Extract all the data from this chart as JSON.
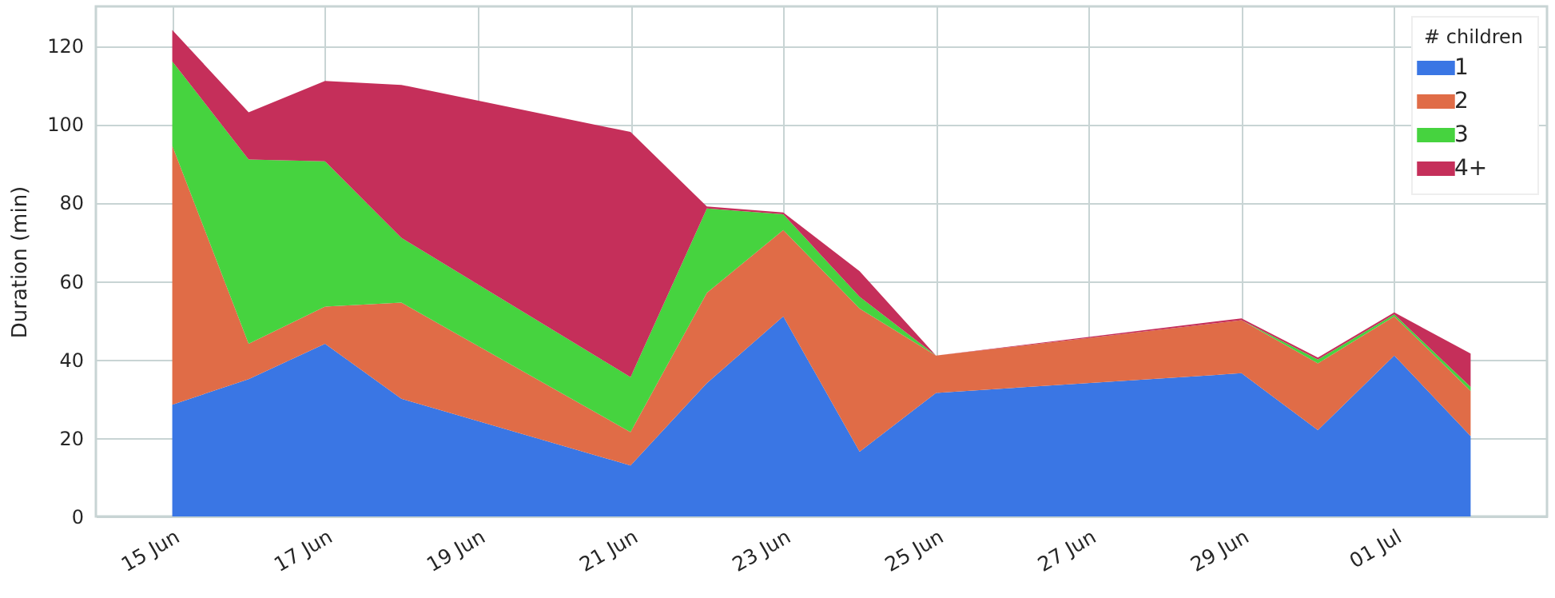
{
  "chart_data": {
    "type": "area",
    "stacked": true,
    "ylabel": "Duration (min)",
    "legend_title": "# children",
    "legend": "top right",
    "grid": true,
    "x": [
      "--06-15",
      "--06-16",
      "--06-17",
      "--06-18",
      "--06-21",
      "--06-22",
      "--06-23",
      "--06-24",
      "--06-25",
      "--06-29",
      "--06-30",
      "--07-01",
      "--07-02"
    ],
    "xlim": [
      "--06-14",
      "--07-03"
    ],
    "xticks": [
      {
        "value": "--06-15",
        "label": "15 Jun"
      },
      {
        "value": "--06-17",
        "label": "17 Jun"
      },
      {
        "value": "--06-19",
        "label": "19 Jun"
      },
      {
        "value": "--06-21",
        "label": "21 Jun"
      },
      {
        "value": "--06-23",
        "label": "23 Jun"
      },
      {
        "value": "--06-25",
        "label": "25 Jun"
      },
      {
        "value": "--06-27",
        "label": "27 Jun"
      },
      {
        "value": "--06-29",
        "label": "29 Jun"
      },
      {
        "value": "--07-01",
        "label": "01 Jul"
      }
    ],
    "ylim": [
      0,
      130
    ],
    "yticks": [
      0,
      20,
      40,
      60,
      80,
      100,
      120
    ],
    "series": [
      {
        "name": "1",
        "color": "#3a76e4",
        "values": [
          28.5,
          35,
          44,
          30,
          13,
          34,
          51,
          16.5,
          31.5,
          36.5,
          22,
          41,
          20.5
        ]
      },
      {
        "name": "2",
        "color": "#e06c47",
        "values": [
          66,
          9,
          9.5,
          24.5,
          8.5,
          23,
          22,
          36.5,
          9.5,
          13.5,
          17,
          10,
          11.5
        ]
      },
      {
        "name": "3",
        "color": "#46d33f",
        "values": [
          21.5,
          47,
          37,
          16.5,
          14,
          21.5,
          4,
          3,
          0,
          0,
          1,
          0.5,
          1
        ]
      },
      {
        "name": "4+",
        "color": "#c52f5a",
        "values": [
          8,
          12,
          20.5,
          39,
          62.5,
          0.5,
          0.5,
          6.5,
          0,
          0.5,
          0.5,
          0.5,
          8.5
        ]
      }
    ]
  }
}
